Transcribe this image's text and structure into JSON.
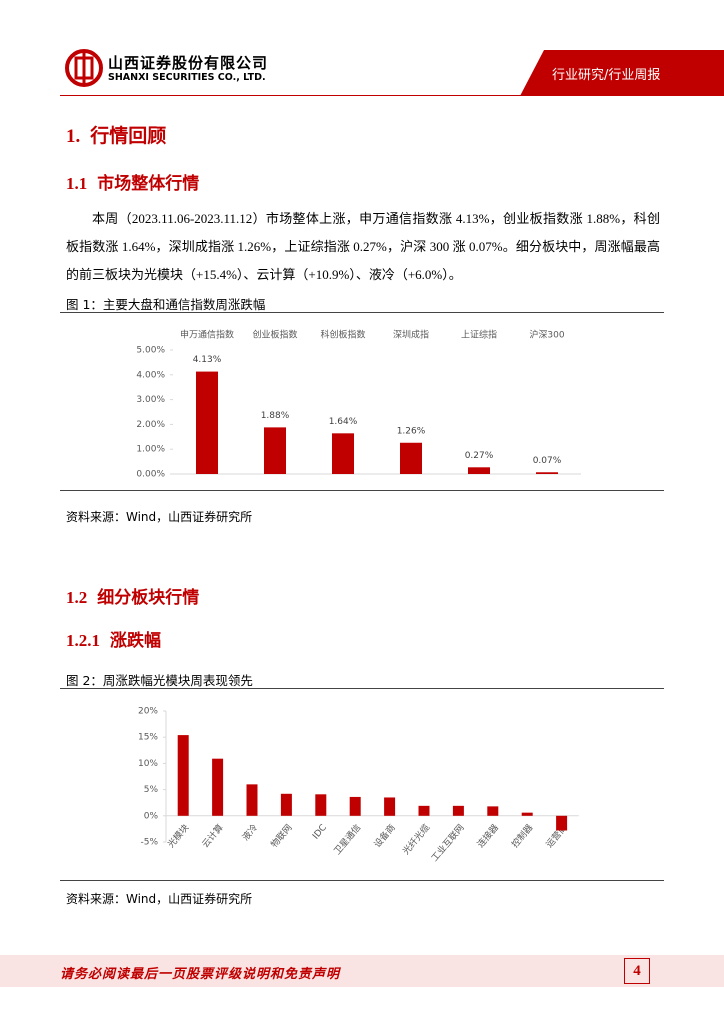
{
  "header": {
    "company_cn": "山西证券股份有限公司",
    "company_en": "SHANXI SECURITIES CO., LTD.",
    "tag": "行业研究/行业周报"
  },
  "headings": [
    {
      "number": "1.",
      "title": "行情回顾"
    },
    {
      "number": "1.1",
      "title": "市场整体行情"
    },
    {
      "number": "1.2",
      "title": "细分板块行情"
    },
    {
      "number": "1.2.1",
      "title": "涨跌幅"
    }
  ],
  "paragraph": "本周（2023.11.06-2023.11.12）市场整体上涨，申万通信指数涨 4.13%，创业板指数涨 1.88%，科创板指数涨 1.64%，深圳成指涨 1.26%，上证综指涨 0.27%，沪深 300 涨 0.07%。细分板块中，周涨幅最高的前三板块为光模块（+15.4%）、云计算（+10.9%）、液冷（+6.0%）。",
  "figures": [
    {
      "caption": "图 1：主要大盘和通信指数周涨跌幅",
      "source": "资料来源：Wind，山西证券研究所"
    },
    {
      "caption": "图 2：周涨跌幅光模块周表现领先",
      "source": "资料来源：Wind，山西证券研究所"
    }
  ],
  "chart_data": [
    {
      "type": "bar",
      "color": "#c00000",
      "categories": [
        "申万通信指数",
        "创业板指数",
        "科创板指数",
        "深圳成指",
        "上证综指",
        "沪深300"
      ],
      "values": [
        4.13,
        1.88,
        1.64,
        1.26,
        0.27,
        0.07
      ],
      "value_labels": [
        "4.13%",
        "1.88%",
        "1.64%",
        "1.26%",
        "0.27%",
        "0.07%"
      ],
      "ylim": [
        0,
        5
      ],
      "yticks": [
        {
          "value": 0,
          "label": "0.00%"
        },
        {
          "value": 1,
          "label": "1.00%"
        },
        {
          "value": 2,
          "label": "2.00%"
        },
        {
          "value": 3,
          "label": "3.00%"
        },
        {
          "value": 4,
          "label": "4.00%"
        },
        {
          "value": 5,
          "label": "5.00%"
        }
      ]
    },
    {
      "type": "bar",
      "color": "#c00000",
      "categories": [
        "光模块",
        "云计算",
        "液冷",
        "物联网",
        "IDC",
        "卫星通信",
        "设备商",
        "光纤光缆",
        "工业互联网",
        "连接器",
        "控制器",
        "运营商"
      ],
      "values": [
        15.4,
        10.9,
        6.0,
        4.2,
        4.1,
        3.6,
        3.5,
        1.9,
        1.9,
        1.8,
        0.6,
        -2.8
      ],
      "ylim": [
        -5,
        20
      ],
      "yticks": [
        {
          "value": -5,
          "label": "-5%"
        },
        {
          "value": 0,
          "label": "0%"
        },
        {
          "value": 5,
          "label": "5%"
        },
        {
          "value": 10,
          "label": "10%"
        },
        {
          "value": 15,
          "label": "15%"
        },
        {
          "value": 20,
          "label": "20%"
        }
      ]
    }
  ],
  "footer": {
    "disclaimer": "请务必阅读最后一页股票评级说明和免责声明",
    "page": "4"
  }
}
